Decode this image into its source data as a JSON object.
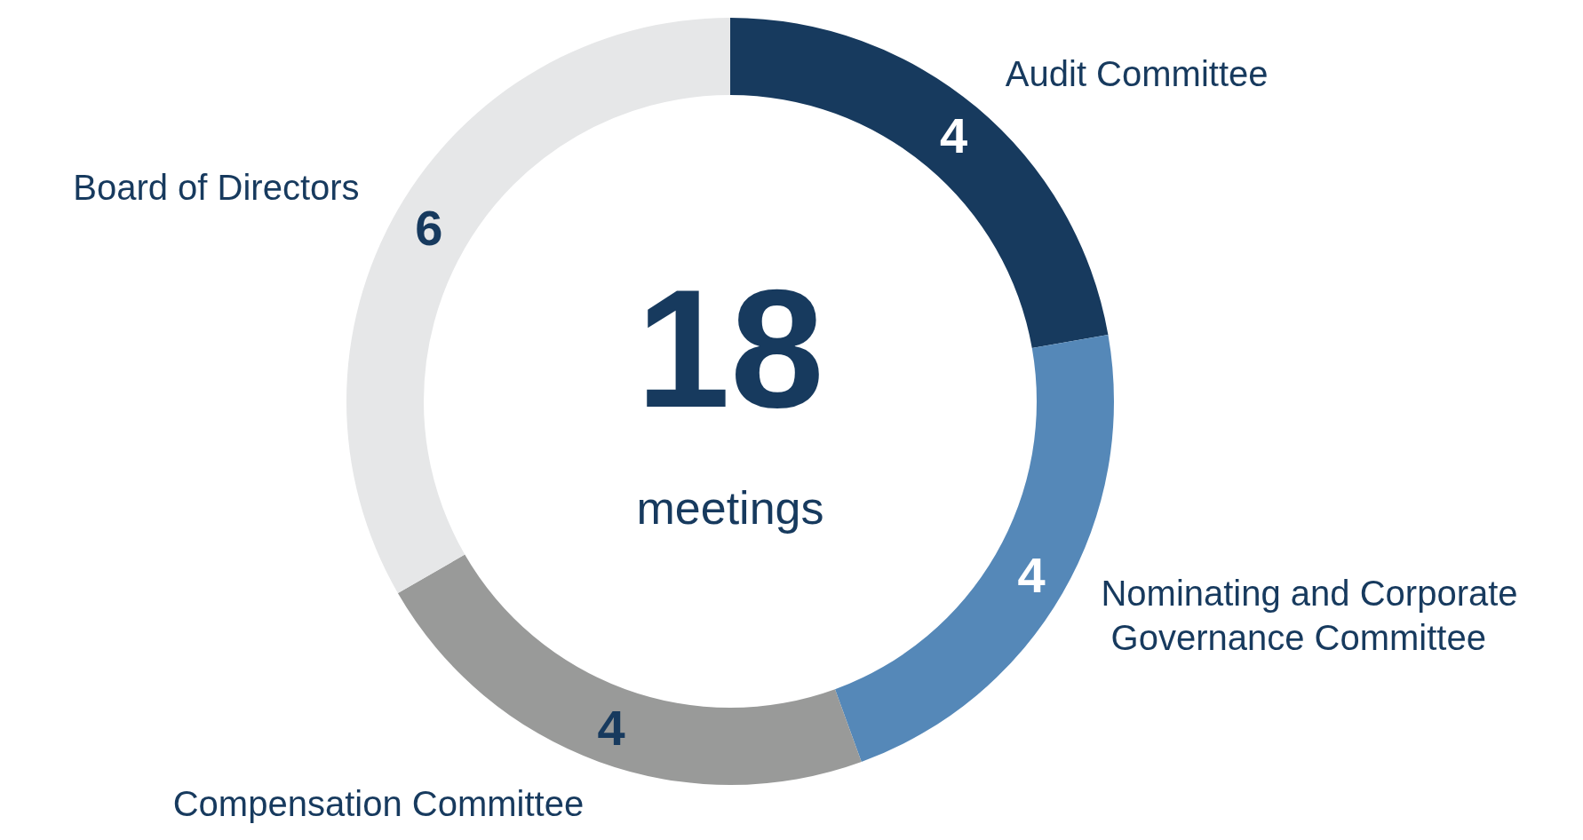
{
  "chart_data": {
    "type": "donut",
    "categories": [
      "Audit Committee",
      "Nominating and Corporate Governance Committee",
      "Compensation Committee",
      "Board of Directors"
    ],
    "values": [
      4,
      4,
      4,
      6
    ],
    "colors": [
      "#173a5e",
      "#5588b8",
      "#999a99",
      "#e6e7e8"
    ],
    "data_labels": true,
    "legend": false,
    "annotations": [
      "18",
      "meetings"
    ]
  }
}
